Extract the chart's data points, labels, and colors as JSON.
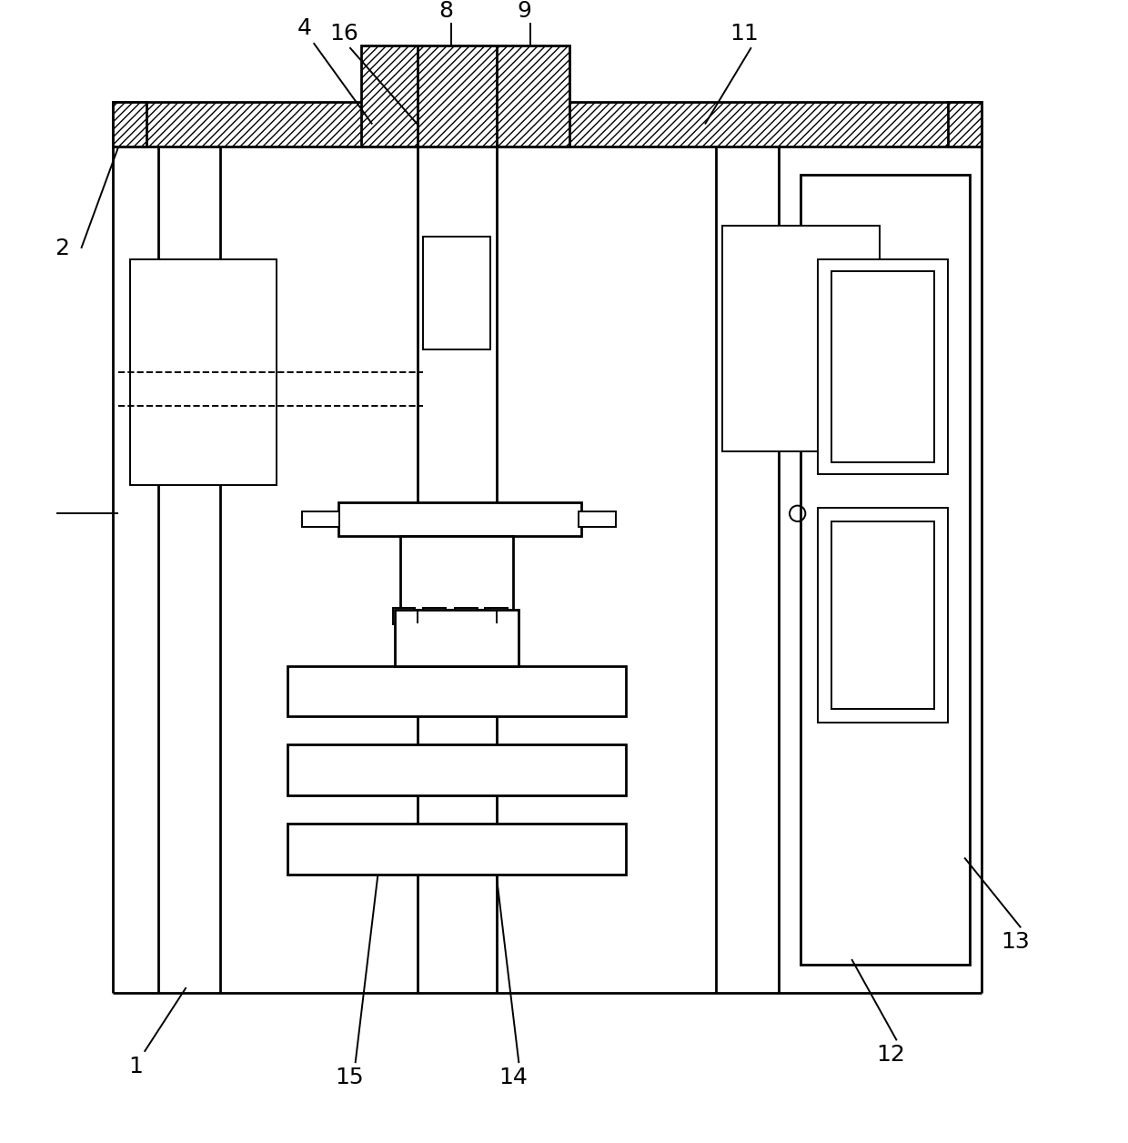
{
  "bg_color": "#ffffff",
  "line_color": "#000000",
  "figsize": [
    12.4,
    12.56
  ],
  "dpi": 100,
  "lw_main": 2.0,
  "lw_thin": 1.4,
  "lw_med": 1.7,
  "label_fontsize": 18
}
